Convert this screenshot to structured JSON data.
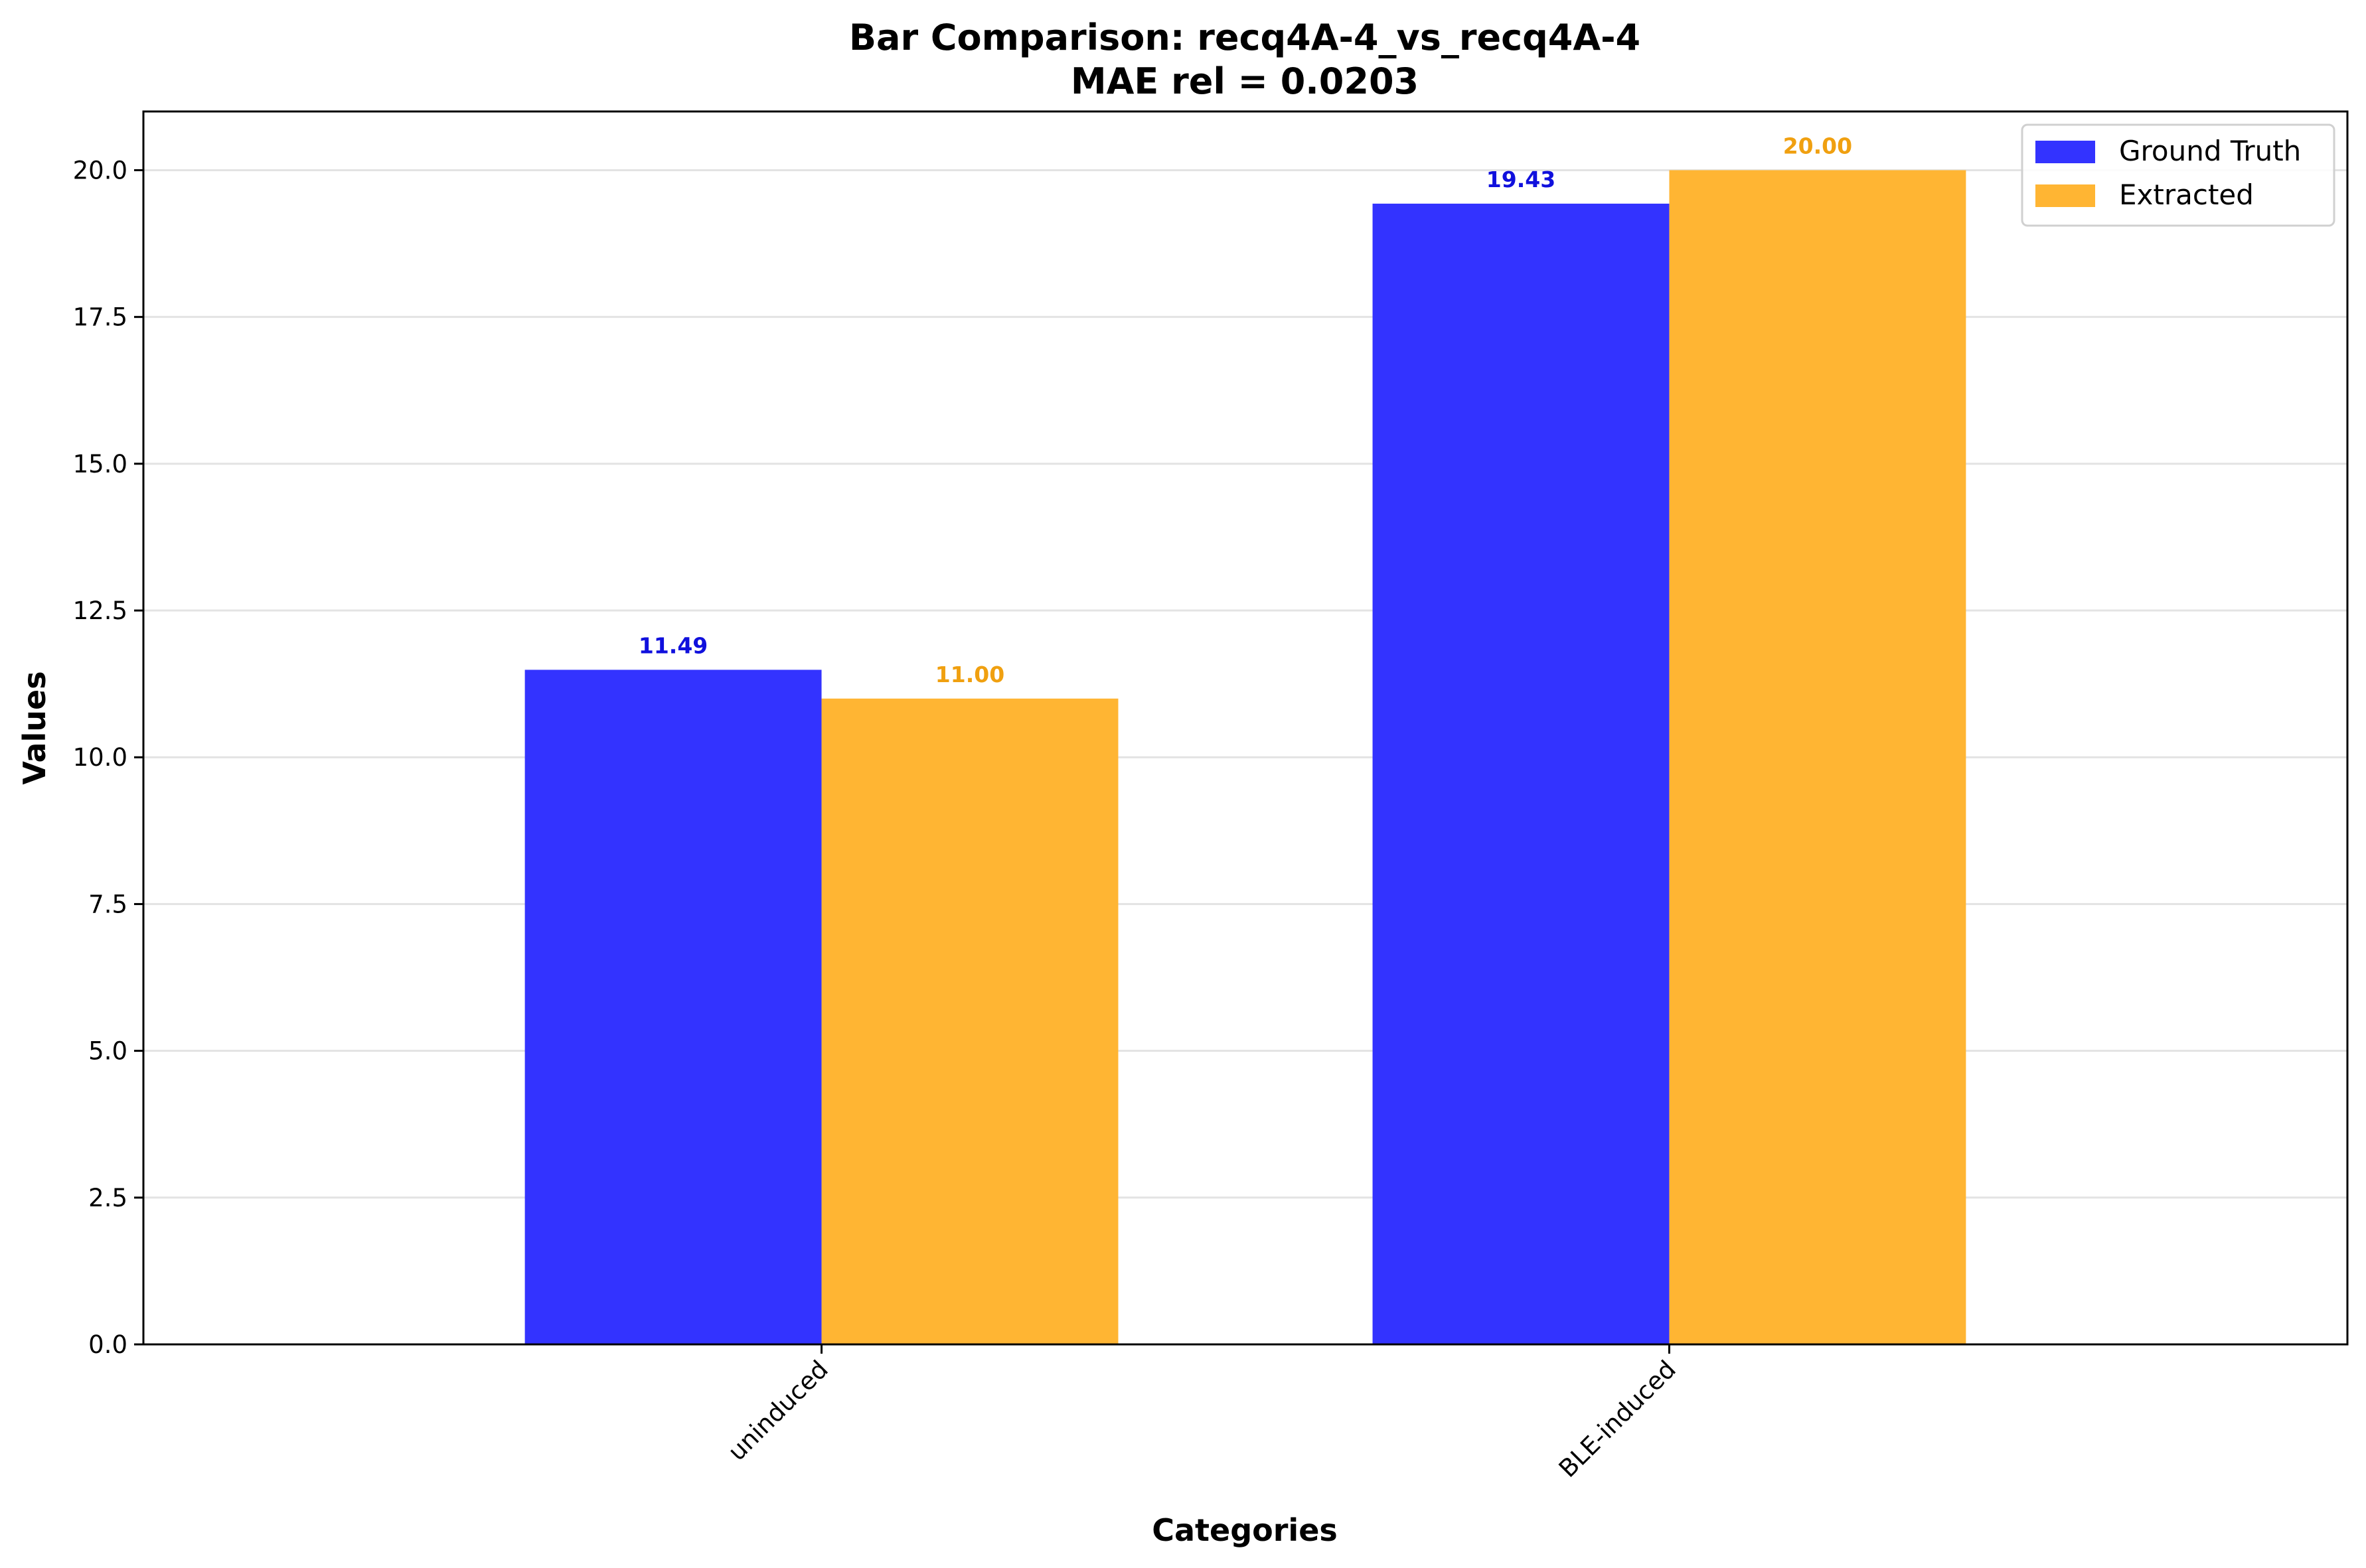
{
  "chart_data": {
    "type": "bar",
    "title": "Bar Comparison: recq4A-4_vs_recq4A-4",
    "subtitle": "MAE rel = 0.0203",
    "xlabel": "Categories",
    "ylabel": "Values",
    "categories": [
      "uninduced",
      "BLE-induced"
    ],
    "series": [
      {
        "name": "Ground Truth",
        "color": "#3333ff",
        "label_color": "#1010dd",
        "values": [
          11.49,
          19.43
        ],
        "labels": [
          "11.49",
          "19.43"
        ]
      },
      {
        "name": "Extracted",
        "color": "#ffb533",
        "label_color": "#f0a010",
        "values": [
          11.0,
          20.0
        ],
        "labels": [
          "11.00",
          "20.00"
        ]
      }
    ],
    "ylim": [
      0,
      21
    ],
    "yticks": [
      0,
      2.5,
      5,
      7.5,
      10,
      12.5,
      15,
      17.5,
      20
    ],
    "ytick_labels": [
      "0.0",
      "2.5",
      "5.0",
      "7.5",
      "10.0",
      "12.5",
      "15.0",
      "17.5",
      "20.0"
    ],
    "grid": "y",
    "legend_position": "top-right"
  }
}
